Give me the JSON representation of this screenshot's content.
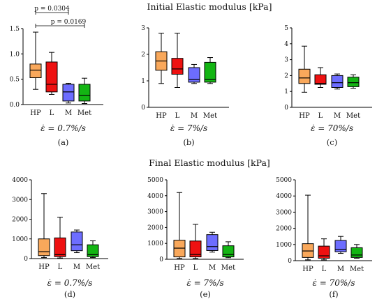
{
  "titles": {
    "top": "Initial Elastic modulus [kPa]",
    "bottom": "Final Elastic modulus [kPa]"
  },
  "colors": {
    "HP": "#f9a85b",
    "L": "#ee1111",
    "M": "#6d6dff",
    "Met": "#13b513"
  },
  "chart_data": [
    {
      "type": "box",
      "panel": "(a)",
      "rate_label": "ε̇ = 0.7%/s",
      "categories": [
        "HP",
        "L",
        "M",
        "Met"
      ],
      "ylim": [
        0,
        1.5
      ],
      "yticks": [
        "0.0",
        "0.5",
        "1.0",
        "1.5"
      ],
      "ytick_values": [
        0,
        0.5,
        1.0,
        1.5
      ],
      "boxes": [
        {
          "min": 0.3,
          "q1": 0.53,
          "median": 0.68,
          "q3": 0.8,
          "max": 1.43
        },
        {
          "min": 0.2,
          "q1": 0.25,
          "median": 0.4,
          "q3": 0.84,
          "max": 1.03
        },
        {
          "min": 0.03,
          "q1": 0.07,
          "median": 0.25,
          "q3": 0.4,
          "max": 0.42
        },
        {
          "min": 0.02,
          "q1": 0.07,
          "median": 0.18,
          "q3": 0.4,
          "max": 0.52
        }
      ],
      "annotations": [
        {
          "text": "p = 0.0304",
          "from": "HP",
          "to": "M"
        },
        {
          "text": "p = 0.0169",
          "from": "HP",
          "to": "Met"
        }
      ]
    },
    {
      "type": "box",
      "panel": "(b)",
      "rate_label": "ε̇ = 7%/s",
      "categories": [
        "HP",
        "L",
        "M",
        "Met"
      ],
      "ylim": [
        0,
        3
      ],
      "yticks": [
        "0",
        "1",
        "2",
        "3"
      ],
      "ytick_values": [
        0,
        1,
        2,
        3
      ],
      "boxes": [
        {
          "min": 0.9,
          "q1": 1.4,
          "median": 1.75,
          "q3": 2.1,
          "max": 2.8
        },
        {
          "min": 0.75,
          "q1": 1.25,
          "median": 1.45,
          "q3": 1.85,
          "max": 2.8
        },
        {
          "min": 0.9,
          "q1": 0.95,
          "median": 1.05,
          "q3": 1.5,
          "max": 1.62
        },
        {
          "min": 0.9,
          "q1": 0.95,
          "median": 1.05,
          "q3": 1.7,
          "max": 1.88
        }
      ]
    },
    {
      "type": "box",
      "panel": "(c)",
      "rate_label": "ε̇ = 70%/s",
      "categories": [
        "HP",
        "L",
        "M",
        "Met"
      ],
      "ylim": [
        0,
        5
      ],
      "yticks": [
        "0",
        "1",
        "2",
        "3",
        "4",
        "5"
      ],
      "ytick_values": [
        0,
        1,
        2,
        3,
        4,
        5
      ],
      "boxes": [
        {
          "min": 0.95,
          "q1": 1.5,
          "median": 1.85,
          "q3": 2.4,
          "max": 3.85
        },
        {
          "min": 1.25,
          "q1": 1.45,
          "median": 1.5,
          "q3": 2.05,
          "max": 2.5
        },
        {
          "min": 1.15,
          "q1": 1.25,
          "median": 1.55,
          "q3": 2.0,
          "max": 2.1
        },
        {
          "min": 1.2,
          "q1": 1.3,
          "median": 1.55,
          "q3": 1.9,
          "max": 2.05
        }
      ]
    },
    {
      "type": "box",
      "panel": "(d)",
      "rate_label": "ε̇ = 0.7%/s",
      "categories": [
        "HP",
        "L",
        "M",
        "Met"
      ],
      "ylim": [
        0,
        4000
      ],
      "yticks": [
        "0",
        "1000",
        "2000",
        "3000",
        "4000"
      ],
      "ytick_values": [
        0,
        1000,
        2000,
        3000,
        4000
      ],
      "boxes": [
        {
          "min": 50,
          "q1": 150,
          "median": 350,
          "q3": 1000,
          "max": 3300
        },
        {
          "min": 30,
          "q1": 100,
          "median": 200,
          "q3": 1050,
          "max": 2100
        },
        {
          "min": 300,
          "q1": 400,
          "median": 700,
          "q3": 1350,
          "max": 1450
        },
        {
          "min": 50,
          "q1": 100,
          "median": 200,
          "q3": 700,
          "max": 900
        }
      ]
    },
    {
      "type": "box",
      "panel": "(e)",
      "rate_label": "ε̇ = 7%/s",
      "categories": [
        "HP",
        "L",
        "M",
        "Met"
      ],
      "ylim": [
        0,
        5000
      ],
      "yticks": [
        "0",
        "1000",
        "2000",
        "3000",
        "4000",
        "5000"
      ],
      "ytick_values": [
        0,
        1000,
        2000,
        3000,
        4000,
        5000
      ],
      "boxes": [
        {
          "min": 50,
          "q1": 150,
          "median": 700,
          "q3": 1200,
          "max": 4200
        },
        {
          "min": 50,
          "q1": 150,
          "median": 300,
          "q3": 1150,
          "max": 2200
        },
        {
          "min": 450,
          "q1": 550,
          "median": 800,
          "q3": 1550,
          "max": 1700
        },
        {
          "min": 100,
          "q1": 150,
          "median": 300,
          "q3": 850,
          "max": 1100
        }
      ]
    },
    {
      "type": "box",
      "panel": "(f)",
      "rate_label": "ε̇ = 70%/s",
      "categories": [
        "HP",
        "L",
        "M",
        "Met"
      ],
      "ylim": [
        0,
        5000
      ],
      "yticks": [
        "0",
        "1000",
        "2000",
        "3000",
        "4000",
        "5000"
      ],
      "ytick_values": [
        0,
        1000,
        2000,
        3000,
        4000,
        5000
      ],
      "boxes": [
        {
          "min": 50,
          "q1": 200,
          "median": 600,
          "q3": 1050,
          "max": 4050
        },
        {
          "min": 50,
          "q1": 150,
          "median": 300,
          "q3": 900,
          "max": 1350
        },
        {
          "min": 450,
          "q1": 550,
          "median": 700,
          "q3": 1250,
          "max": 1500
        },
        {
          "min": 150,
          "q1": 200,
          "median": 350,
          "q3": 800,
          "max": 1000
        }
      ]
    }
  ]
}
